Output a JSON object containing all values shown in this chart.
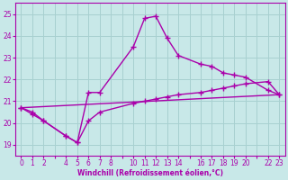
{
  "xlabel": "Windchill (Refroidissement éolien,°C)",
  "bg_color": "#c8e8e8",
  "grid_color": "#a8d0d0",
  "line_color": "#aa00aa",
  "xlim": [
    -0.5,
    23.5
  ],
  "ylim": [
    18.5,
    25.5
  ],
  "yticks": [
    19,
    20,
    21,
    22,
    23,
    24,
    25
  ],
  "all_xticks": [
    0,
    1,
    2,
    3,
    4,
    5,
    6,
    7,
    8,
    9,
    10,
    11,
    12,
    13,
    14,
    15,
    16,
    17,
    18,
    19,
    20,
    21,
    22,
    23
  ],
  "labeled_xticks": [
    0,
    1,
    2,
    4,
    5,
    6,
    7,
    8,
    10,
    11,
    12,
    13,
    14,
    16,
    17,
    18,
    19,
    20,
    22,
    23
  ],
  "series1_x": [
    0,
    1,
    2,
    4,
    5,
    6,
    7,
    10,
    11,
    12,
    13,
    14,
    16,
    17,
    18,
    19,
    20,
    22,
    23
  ],
  "series1_y": [
    20.7,
    20.5,
    20.1,
    19.4,
    19.1,
    21.4,
    21.4,
    23.5,
    24.8,
    24.9,
    23.9,
    23.1,
    22.7,
    22.6,
    22.3,
    22.2,
    22.1,
    21.5,
    21.3
  ],
  "series2_x": [
    0,
    1,
    2,
    4,
    5,
    6,
    7,
    10,
    11,
    12,
    13,
    14,
    16,
    17,
    18,
    19,
    20,
    22,
    23
  ],
  "series2_y": [
    20.7,
    20.4,
    20.1,
    19.4,
    19.1,
    20.1,
    20.5,
    20.9,
    21.0,
    21.1,
    21.2,
    21.3,
    21.4,
    21.5,
    21.6,
    21.7,
    21.8,
    21.9,
    21.3
  ],
  "series3_x": [
    0,
    23
  ],
  "series3_y": [
    20.7,
    21.3
  ]
}
